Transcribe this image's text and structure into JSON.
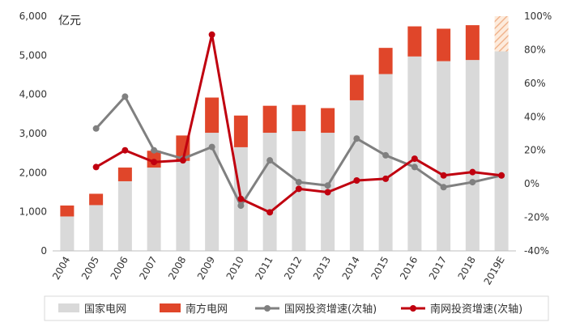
{
  "chart_data": {
    "type": "bar+line",
    "unit_label": "亿元",
    "categories": [
      "2004",
      "2005",
      "2006",
      "2007",
      "2008",
      "2009",
      "2010",
      "2011",
      "2012",
      "2013",
      "2014",
      "2015",
      "2016",
      "2017",
      "2018",
      "2019E"
    ],
    "left_axis": {
      "min": 0,
      "max": 6000,
      "ticks": [
        "0",
        "1,000",
        "2,000",
        "3,000",
        "4,000",
        "5,000",
        "6,000"
      ]
    },
    "right_axis": {
      "min": -40,
      "max": 100,
      "ticks": [
        "-40%",
        "-20%",
        "0%",
        "20%",
        "40%",
        "60%",
        "80%",
        "100%"
      ]
    },
    "bar_series": [
      {
        "name": "国家电网",
        "color": "#d9d9d9",
        "values": [
          880,
          1170,
          1780,
          2130,
          2300,
          3020,
          2650,
          3020,
          3060,
          3020,
          3850,
          4520,
          4970,
          4850,
          4880,
          5100
        ]
      },
      {
        "name": "南方电网",
        "color": "#e0462a",
        "values": [
          280,
          290,
          350,
          430,
          650,
          900,
          810,
          690,
          670,
          630,
          650,
          670,
          770,
          830,
          890,
          900
        ],
        "last_hatched": true,
        "hatch_color": "#f0b48e"
      }
    ],
    "line_series": [
      {
        "name": "国网投资增速(次轴)",
        "color": "#808080",
        "axis": "right",
        "start_index": 1,
        "values": [
          33,
          52,
          20,
          15,
          22,
          -13,
          14,
          1,
          -1,
          27,
          17,
          10,
          -2,
          1,
          5
        ]
      },
      {
        "name": "南网投资增速(次轴)",
        "color": "#c0000f",
        "axis": "right",
        "start_index": 1,
        "values": [
          10,
          20,
          13,
          14,
          89,
          -9,
          -17,
          -3,
          -5,
          2,
          3,
          15,
          5,
          7,
          5
        ]
      }
    ],
    "legend": [
      "国家电网",
      "南方电网",
      "国网投资增速(次轴)",
      "南网投资增速(次轴)"
    ],
    "legend_position": "bottom",
    "grid": false
  }
}
